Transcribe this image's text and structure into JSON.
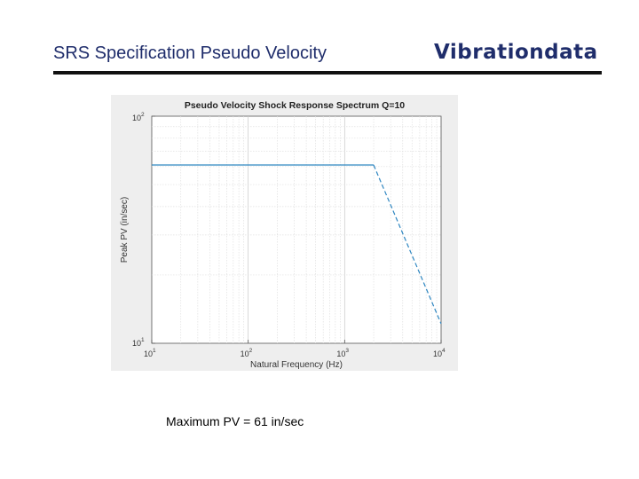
{
  "slide": {
    "title": "SRS Specification Pseudo Velocity",
    "brand": "Vibrationdata",
    "note": "Maximum PV =  61 in/sec"
  },
  "chart_data": {
    "type": "line",
    "title": "Pseudo Velocity Shock Response Spectrum Q=10",
    "xlabel": "Natural Frequency (Hz)",
    "ylabel": "Peak PV (in/sec)",
    "xscale": "log",
    "yscale": "log",
    "xlim": [
      10,
      10000
    ],
    "ylim": [
      10,
      100
    ],
    "grid": true,
    "x_ticks": [
      {
        "value": 10,
        "base": "10",
        "exp": "1"
      },
      {
        "value": 100,
        "base": "10",
        "exp": "2"
      },
      {
        "value": 1000,
        "base": "10",
        "exp": "3"
      },
      {
        "value": 10000,
        "base": "10",
        "exp": "4"
      }
    ],
    "y_ticks": [
      {
        "value": 10,
        "base": "10",
        "exp": "1"
      },
      {
        "value": 100,
        "base": "10",
        "exp": "2"
      }
    ],
    "line_color": "#2e86c1",
    "series": [
      {
        "x": [
          10,
          2000
        ],
        "y": [
          61,
          61
        ],
        "style": "solid"
      },
      {
        "x": [
          2000,
          10000
        ],
        "y": [
          61,
          12.2
        ],
        "style": "dashed"
      }
    ]
  }
}
